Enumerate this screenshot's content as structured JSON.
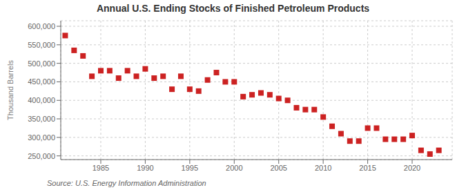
{
  "chart_data": {
    "type": "scatter",
    "title": "Annual U.S. Ending Stocks of Finished Petroleum Products",
    "ylabel": "Thousand Barrels",
    "annotation": "Source: U.S. Energy Information Administration",
    "x": [
      1981,
      1982,
      1983,
      1984,
      1985,
      1986,
      1987,
      1988,
      1989,
      1990,
      1991,
      1992,
      1993,
      1994,
      1995,
      1996,
      1997,
      1998,
      1999,
      2000,
      2001,
      2002,
      2003,
      2004,
      2005,
      2006,
      2007,
      2008,
      2009,
      2010,
      2011,
      2012,
      2013,
      2014,
      2015,
      2016,
      2017,
      2018,
      2019,
      2020,
      2021,
      2022,
      2023
    ],
    "values": [
      575000,
      535000,
      520000,
      465000,
      480000,
      480000,
      460000,
      480000,
      465000,
      485000,
      460000,
      465000,
      430000,
      465000,
      430000,
      425000,
      455000,
      475000,
      450000,
      450000,
      410000,
      415000,
      420000,
      415000,
      405000,
      400000,
      380000,
      375000,
      375000,
      355000,
      330000,
      310000,
      290000,
      290000,
      325000,
      325000,
      295000,
      295000,
      295000,
      305000,
      265000,
      255000,
      265000
    ],
    "color": "#cc2222",
    "marker": "square",
    "grid": true,
    "xlim": [
      1980.5,
      2024.5
    ],
    "xticks": [
      1985,
      1990,
      1995,
      2000,
      2005,
      2010,
      2015,
      2020
    ],
    "ylim": [
      240000,
      615000
    ],
    "yticks": [
      {
        "value": 250000,
        "label": "250,000"
      },
      {
        "value": 300000,
        "label": "300,000"
      },
      {
        "value": 350000,
        "label": "350,000"
      },
      {
        "value": 400000,
        "label": "400,000"
      },
      {
        "value": 450000,
        "label": "450,000"
      },
      {
        "value": 500000,
        "label": "500,000"
      },
      {
        "value": 550000,
        "label": "550,000"
      },
      {
        "value": 600000,
        "label": "600,000"
      }
    ]
  }
}
